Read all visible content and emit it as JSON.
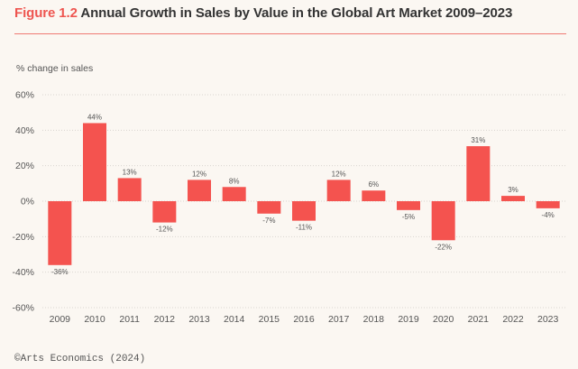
{
  "header": {
    "figure_label": "Figure 1.2",
    "title_text": "Annual Growth in Sales by Value in the Global Art Market 2009–2023"
  },
  "footer": {
    "source": "©Arts Economics (2024)"
  },
  "colors": {
    "accent": "#ee5550",
    "bar": "#f4534f",
    "background": "#fbf7f2",
    "grid": "#d9d5d0"
  },
  "chart_data": {
    "type": "bar",
    "ylabel": "% change in sales",
    "categories": [
      "2009",
      "2010",
      "2011",
      "2012",
      "2013",
      "2014",
      "2015",
      "2016",
      "2017",
      "2018",
      "2019",
      "2020",
      "2021",
      "2022",
      "2023"
    ],
    "values": [
      -36,
      44,
      13,
      -12,
      12,
      8,
      -7,
      -11,
      12,
      6,
      -5,
      -22,
      31,
      3,
      -4
    ],
    "value_labels": [
      "-36%",
      "44%",
      "13%",
      "-12%",
      "12%",
      "8%",
      "-7%",
      "-11%",
      "12%",
      "6%",
      "-5%",
      "-22%",
      "31%",
      "3%",
      "-4%"
    ],
    "ylim": [
      -60,
      60
    ],
    "yticks": [
      60,
      40,
      20,
      0,
      -20,
      -40,
      -60
    ],
    "ytick_labels": [
      "60%",
      "40%",
      "20%",
      "0%",
      "-20%",
      "-40%",
      "-60%"
    ],
    "grid": true,
    "legend": "none"
  }
}
